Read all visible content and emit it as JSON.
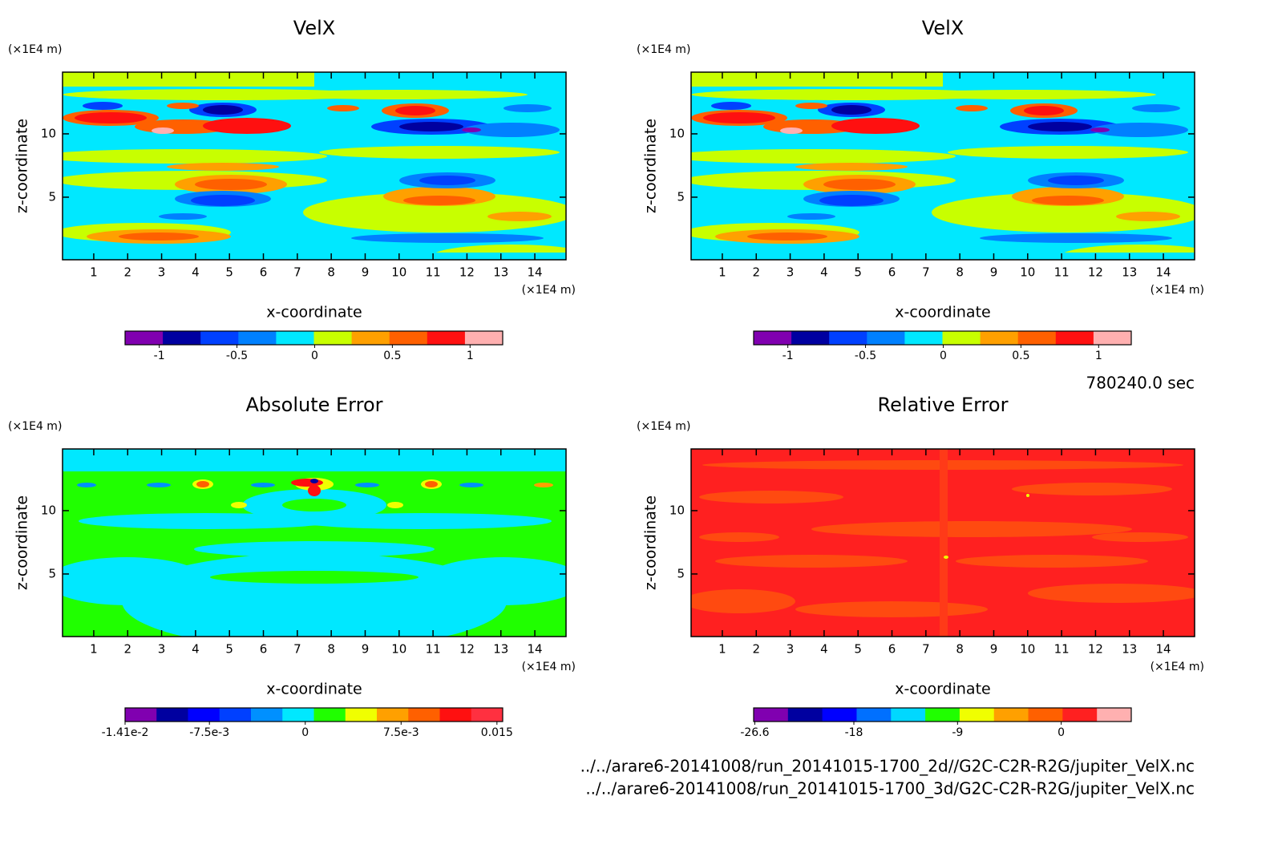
{
  "chart_data": [
    {
      "type": "contour",
      "title": "VelX",
      "xlabel": "x-coordinate",
      "ylabel": "z-coordinate",
      "xunit": "(×1E4 m)",
      "yunit": "(×1E4 m)",
      "xlim": [
        0.08,
        14.92
      ],
      "ylim": [
        0.06,
        14.87
      ],
      "xticks": [
        1,
        2,
        3,
        4,
        5,
        6,
        7,
        8,
        9,
        10,
        11,
        12,
        13,
        14
      ],
      "yticks": [
        5,
        10
      ],
      "clim": [
        -1.22,
        1.21
      ],
      "colors": [
        "#8000b0",
        "#0000a0",
        "#0040ff",
        "#0080ff",
        "#00e8ff",
        "#c8ff00",
        "#ffa000",
        "#ff6000",
        "#ff1010",
        "#ffb0b0"
      ],
      "cticks": [
        -1,
        -0.5,
        0,
        0.5,
        1
      ]
    },
    {
      "type": "contour",
      "title": "VelX",
      "xlabel": "x-coordinate",
      "ylabel": "z-coordinate",
      "xunit": "(×1E4 m)",
      "yunit": "(×1E4 m)",
      "xlim": [
        0.08,
        14.92
      ],
      "ylim": [
        0.06,
        14.87
      ],
      "xticks": [
        1,
        2,
        3,
        4,
        5,
        6,
        7,
        8,
        9,
        10,
        11,
        12,
        13,
        14
      ],
      "yticks": [
        5,
        10
      ],
      "clim": [
        -1.22,
        1.21
      ],
      "colors": [
        "#8000b0",
        "#0000a0",
        "#0040ff",
        "#0080ff",
        "#00e8ff",
        "#c8ff00",
        "#ffa000",
        "#ff6000",
        "#ff1010",
        "#ffb0b0"
      ],
      "cticks": [
        -1,
        -0.5,
        0,
        0.5,
        1
      ]
    },
    {
      "type": "contour",
      "title": "Absolute Error",
      "xlabel": "x-coordinate",
      "ylabel": "z-coordinate",
      "xunit": "(×1E4 m)",
      "yunit": "(×1E4 m)",
      "xlim": [
        0.08,
        14.92
      ],
      "ylim": [
        0.06,
        14.87
      ],
      "xticks": [
        1,
        2,
        3,
        4,
        5,
        6,
        7,
        8,
        9,
        10,
        11,
        12,
        13,
        14
      ],
      "yticks": [
        5,
        10
      ],
      "clim": [
        -0.0141,
        0.01545
      ],
      "colors": [
        "#8000b0",
        "#0000a0",
        "#0000ff",
        "#0040ff",
        "#0090ff",
        "#00e8ff",
        "#20ff00",
        "#f0ff00",
        "#ffa000",
        "#ff6000",
        "#ff1010",
        "#ff3040"
      ],
      "cticks": [
        {
          "value": -0.0141,
          "label": "-1.41e-2"
        },
        {
          "value": -0.0075,
          "label": "-7.5e-3"
        },
        0,
        {
          "value": 0.0075,
          "label": "7.5e-3"
        },
        0.015
      ]
    },
    {
      "type": "contour",
      "title": "Relative Error",
      "xlabel": "x-coordinate",
      "ylabel": "z-coordinate",
      "xunit": "(×1E4 m)",
      "yunit": "(×1E4 m)",
      "xlim": [
        0.08,
        14.92
      ],
      "ylim": [
        0.06,
        14.87
      ],
      "xticks": [
        1,
        2,
        3,
        4,
        5,
        6,
        7,
        8,
        9,
        10,
        11,
        12,
        13,
        14
      ],
      "yticks": [
        5,
        10
      ],
      "clim": [
        -26.7,
        6.08
      ],
      "colors": [
        "#8000b0",
        "#0000a0",
        "#0000ff",
        "#0070ff",
        "#00d8ff",
        "#20ff00",
        "#f0ff00",
        "#ffa000",
        "#ff6000",
        "#ff2020",
        "#ffb0b0"
      ],
      "cticks": [
        -26.6,
        -18,
        -9,
        0
      ]
    }
  ],
  "time": "780240.0 sec",
  "files": [
    "../../arare6-20141008/run_20141015-1700_2d//G2C-C2R-R2G/jupiter_VelX.nc",
    "../../arare6-20141008/run_20141015-1700_3d/G2C-C2R-R2G/jupiter_VelX.nc"
  ]
}
